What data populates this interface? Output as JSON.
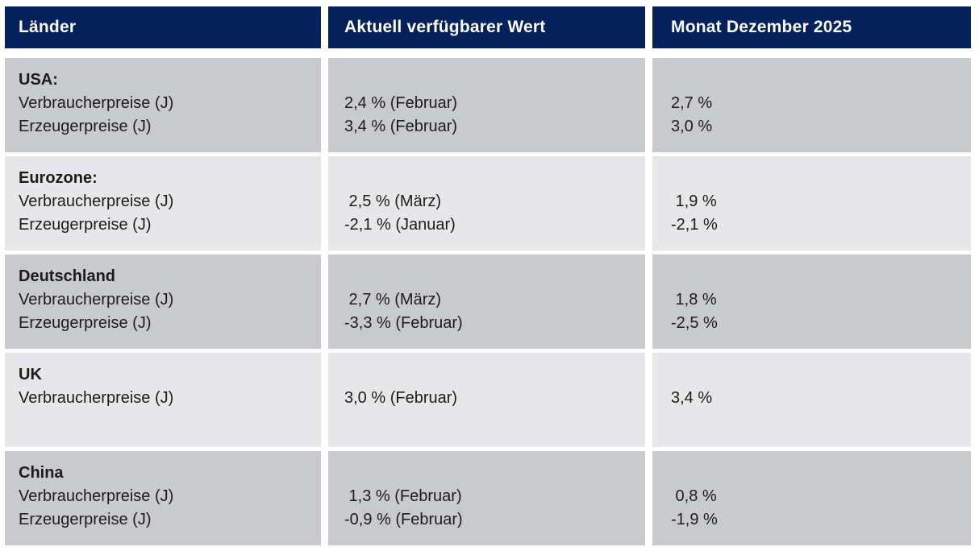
{
  "table": {
    "columns": [
      {
        "label": "Länder"
      },
      {
        "label": "Aktuell verfügbarer Wert"
      },
      {
        "label": "Monat Dezember 2025"
      }
    ],
    "rows": [
      {
        "country": "USA:",
        "indicators": [
          "Verbraucherpreise (J)",
          "Erzeugerpreise (J)"
        ],
        "current": [
          "2,4 % (Februar)",
          "3,4 % (Februar)"
        ],
        "december": [
          "2,7 %",
          "3,0 %"
        ]
      },
      {
        "country": "Eurozone:",
        "indicators": [
          "Verbraucherpreise (J)",
          "Erzeugerpreise (J)"
        ],
        "current": [
          " 2,5 % (März)",
          "-2,1 % (Januar)"
        ],
        "december": [
          " 1,9 %",
          "-2,1 %"
        ]
      },
      {
        "country": "Deutschland",
        "indicators": [
          "Verbraucherpreise (J)",
          "Erzeugerpreise (J)"
        ],
        "current": [
          " 2,7 % (März)",
          "-3,3 % (Februar)"
        ],
        "december": [
          " 1,8 %",
          "-2,5 %"
        ]
      },
      {
        "country": "UK",
        "indicators": [
          "Verbraucherpreise (J)"
        ],
        "current": [
          "3,0 % (Februar)"
        ],
        "december": [
          "3,4 %"
        ]
      },
      {
        "country": "China",
        "indicators": [
          "Verbraucherpreise (J)",
          "Erzeugerpreise (J)"
        ],
        "current": [
          " 1,3 % (Februar)",
          "-0,9 % (Februar)"
        ],
        "december": [
          " 0,8 %",
          "-1,9 %"
        ]
      }
    ],
    "colors": {
      "header_bg": "#04215c",
      "header_text": "#ffffff",
      "row_dark": "#c9cacd",
      "row_light": "#e7e7e9",
      "body_text": "#1c1c1c",
      "page_bg": "#ffffff"
    }
  }
}
